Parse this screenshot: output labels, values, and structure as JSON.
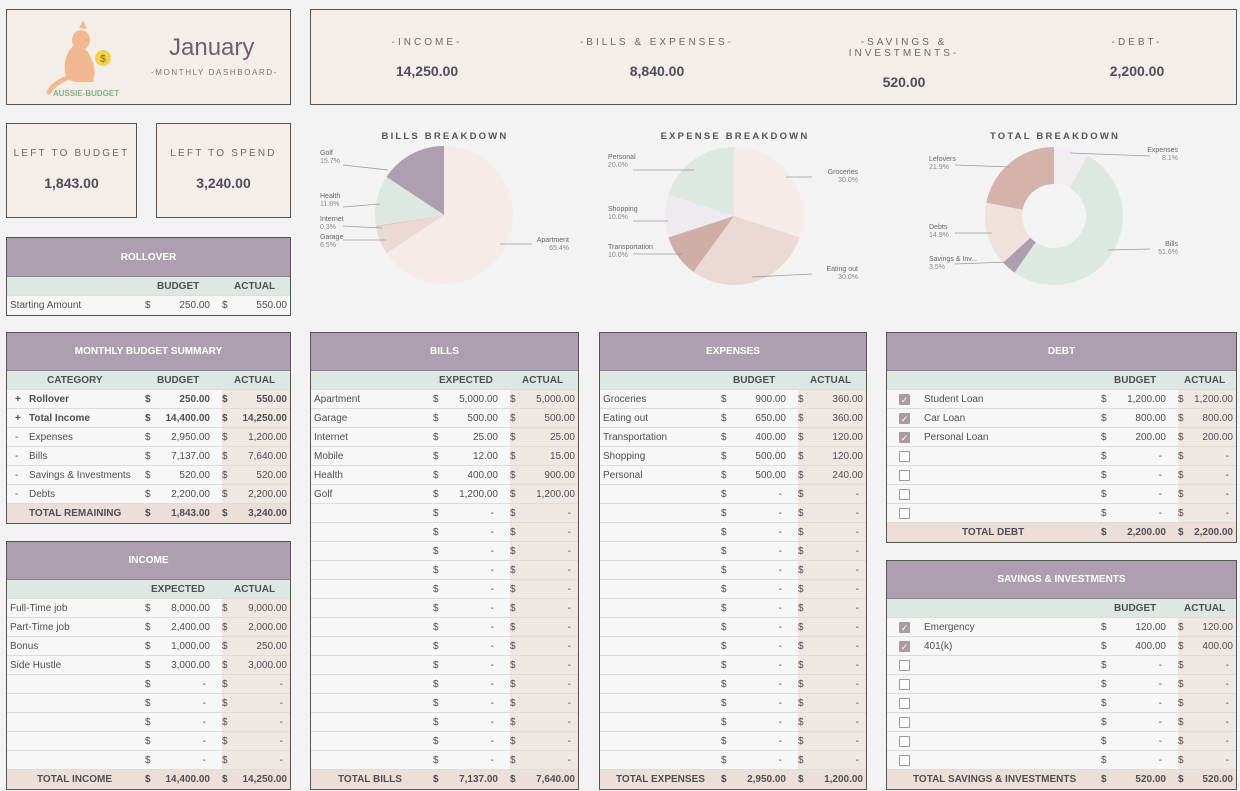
{
  "header": {
    "logo_text": "AUSSIE-BUDGET",
    "month": "January",
    "subtitle": "-MONTHLY DASHBOARD-"
  },
  "stats": [
    {
      "label": "-INCOME-",
      "value": "14,250.00"
    },
    {
      "label": "-BILLS & EXPENSES-",
      "value": "8,840.00"
    },
    {
      "label": "-SAVINGS & INVESTMENTS-",
      "value": "520.00"
    },
    {
      "label": "-DEBT-",
      "value": "2,200.00"
    }
  ],
  "left_to_budget": {
    "label": "LEFT TO BUDGET",
    "value": "1,843.00"
  },
  "left_to_spend": {
    "label": "LEFT TO SPEND",
    "value": "3,240.00"
  },
  "rollover": {
    "title": "ROLLOVER",
    "col_budget": "BUDGET",
    "col_actual": "ACTUAL",
    "row": {
      "name": "Starting Amount",
      "budget": "250.00",
      "actual": "550.00"
    }
  },
  "currency": "$",
  "dash": "-",
  "summary": {
    "title": "MONTHLY BUDGET SUMMARY",
    "col_category": "CATEGORY",
    "col_budget": "BUDGET",
    "col_actual": "ACTUAL",
    "rows": [
      {
        "sign": "+",
        "name": "Rollover",
        "budget": "250.00",
        "actual": "550.00",
        "bold": true
      },
      {
        "sign": "+",
        "name": "Total Income",
        "budget": "14,400.00",
        "actual": "14,250.00",
        "bold": true
      },
      {
        "sign": "-",
        "name": "Expenses",
        "budget": "2,950.00",
        "actual": "1,200.00",
        "bold": false
      },
      {
        "sign": "-",
        "name": "Bills",
        "budget": "7,137.00",
        "actual": "7,640.00",
        "bold": false
      },
      {
        "sign": "-",
        "name": "Savings & Investments",
        "budget": "520.00",
        "actual": "520.00",
        "bold": false
      },
      {
        "sign": "-",
        "name": "Debts",
        "budget": "2,200.00",
        "actual": "2,200.00",
        "bold": false
      }
    ],
    "total": {
      "name": "TOTAL REMAINING",
      "budget": "1,843.00",
      "actual": "3,240.00"
    }
  },
  "income": {
    "title": "INCOME",
    "col_a": "EXPECTED",
    "col_b": "ACTUAL",
    "rows": [
      {
        "name": "Full-Time job",
        "a": "8,000.00",
        "b": "9,000.00"
      },
      {
        "name": "Part-Time job",
        "a": "2,400.00",
        "b": "2,000.00"
      },
      {
        "name": "Bonus",
        "a": "1,000.00",
        "b": "250.00"
      },
      {
        "name": "Side Hustle",
        "a": "3,000.00",
        "b": "3,000.00"
      }
    ],
    "empty_rows": 5,
    "total": {
      "name": "TOTAL INCOME",
      "a": "14,400.00",
      "b": "14,250.00"
    }
  },
  "bills": {
    "title": "BILLS",
    "col_a": "EXPECTED",
    "col_b": "ACTUAL",
    "rows": [
      {
        "name": "Apartment",
        "a": "5,000.00",
        "b": "5,000.00"
      },
      {
        "name": "Garage",
        "a": "500.00",
        "b": "500.00"
      },
      {
        "name": "Internet",
        "a": "25.00",
        "b": "25.00"
      },
      {
        "name": "Mobile",
        "a": "12.00",
        "b": "15.00"
      },
      {
        "name": "Health",
        "a": "400.00",
        "b": "900.00"
      },
      {
        "name": "Golf",
        "a": "1,200.00",
        "b": "1,200.00"
      }
    ],
    "empty_rows": 14,
    "total": {
      "name": "TOTAL BILLS",
      "a": "7,137.00",
      "b": "7,640.00"
    }
  },
  "expenses": {
    "title": "EXPENSES",
    "col_a": "BUDGET",
    "col_b": "ACTUAL",
    "rows": [
      {
        "name": "Groceries",
        "a": "900.00",
        "b": "360.00"
      },
      {
        "name": "Eating out",
        "a": "650.00",
        "b": "360.00"
      },
      {
        "name": "Transportation",
        "a": "400.00",
        "b": "120.00"
      },
      {
        "name": "Shopping",
        "a": "500.00",
        "b": "120.00"
      },
      {
        "name": "Personal",
        "a": "500.00",
        "b": "240.00"
      }
    ],
    "empty_rows": 15,
    "total": {
      "name": "TOTAL EXPENSES",
      "a": "2,950.00",
      "b": "1,200.00"
    }
  },
  "debt": {
    "title": "DEBT",
    "col_a": "BUDGET",
    "col_b": "ACTUAL",
    "rows": [
      {
        "checked": true,
        "name": "Student Loan",
        "a": "1,200.00",
        "b": "1,200.00"
      },
      {
        "checked": true,
        "name": "Car Loan",
        "a": "800.00",
        "b": "800.00"
      },
      {
        "checked": true,
        "name": "Personal Loan",
        "a": "200.00",
        "b": "200.00"
      }
    ],
    "empty_rows": 4,
    "total": {
      "name": "TOTAL DEBT",
      "a": "2,200.00",
      "b": "2,200.00"
    }
  },
  "savings": {
    "title": "SAVINGS & INVESTMENTS",
    "col_a": "BUDGET",
    "col_b": "ACTUAL",
    "rows": [
      {
        "checked": true,
        "name": "Emergency",
        "a": "120.00",
        "b": "120.00"
      },
      {
        "checked": true,
        "name": "401(k)",
        "a": "400.00",
        "b": "400.00"
      }
    ],
    "empty_rows": 6,
    "total": {
      "name": "TOTAL SAVINGS & INVESTMENTS",
      "a": "520.00",
      "b": "520.00"
    }
  },
  "chart_data": [
    {
      "type": "pie",
      "title": "BILLS BREAKDOWN",
      "slices": [
        {
          "label": "Golf",
          "pct": 15.7,
          "pct_text": "15.7%",
          "color": "#ab9fb0"
        },
        {
          "label": "Apartment",
          "pct": 65.4,
          "pct_text": "65.4%",
          "color": "#f5ece9"
        },
        {
          "label": "Garage",
          "pct": 6.5,
          "pct_text": "6.5%",
          "color": "#ead9d4"
        },
        {
          "label": "Internet",
          "pct": 0.3,
          "pct_text": "0.3%",
          "color": "#d8c3bd"
        },
        {
          "label": "Health",
          "pct": 11.8,
          "pct_text": "11.8%",
          "color": "#dde8e2"
        }
      ]
    },
    {
      "type": "pie",
      "title": "EXPENSE BREAKDOWN",
      "slices": [
        {
          "label": "Groceries",
          "pct": 30.0,
          "pct_text": "30.0%",
          "color": "#f5ece9"
        },
        {
          "label": "Eating out",
          "pct": 30.0,
          "pct_text": "30.0%",
          "color": "#ead9d4"
        },
        {
          "label": "Transportation",
          "pct": 10.0,
          "pct_text": "10.0%",
          "color": "#cfaea7"
        },
        {
          "label": "Shopping",
          "pct": 10.0,
          "pct_text": "10.0%",
          "color": "#eeeaf0"
        },
        {
          "label": "Personal",
          "pct": 20.0,
          "pct_text": "20.0%",
          "color": "#dde8e2"
        }
      ]
    },
    {
      "type": "donut",
      "title": "TOTAL BREAKDOWN",
      "slices": [
        {
          "label": "Expenses",
          "pct": 8.1,
          "pct_text": "8.1%",
          "color": "#f1edf3"
        },
        {
          "label": "Bills",
          "pct": 51.6,
          "pct_text": "51.6%",
          "color": "#dde8e2"
        },
        {
          "label": "Savings & Inv...",
          "pct": 3.5,
          "pct_text": "3.5%",
          "color": "#ab9fb0"
        },
        {
          "label": "Debts",
          "pct": 14.9,
          "pct_text": "14.9%",
          "color": "#efe2dc"
        },
        {
          "label": "Lefovers",
          "pct": 21.9,
          "pct_text": "21.9%",
          "color": "#d5b3ac"
        }
      ]
    }
  ]
}
